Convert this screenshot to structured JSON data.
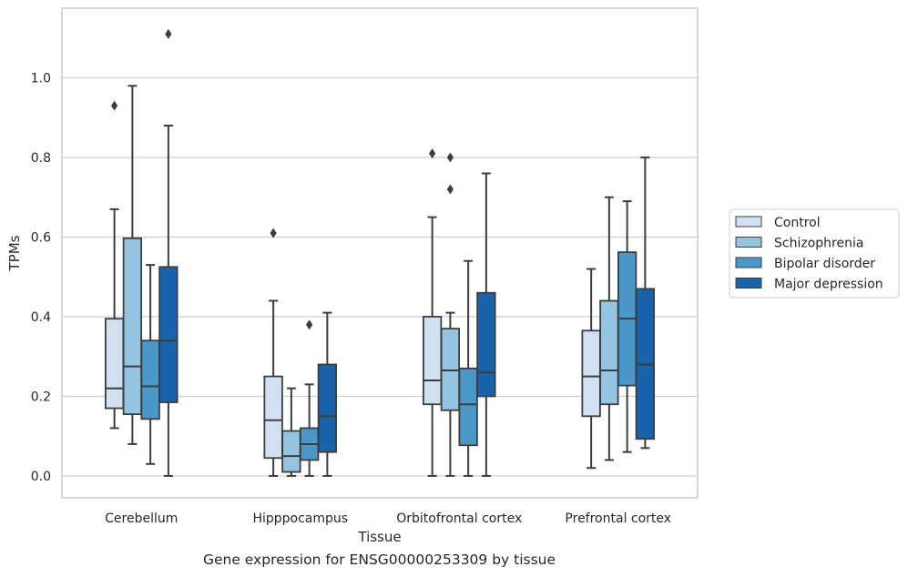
{
  "caption": "Gene expression for ENSG00000253309 by tissue",
  "chart_data": {
    "type": "box",
    "xlabel": "Tissue",
    "ylabel": "TPMs",
    "ylim": [
      -0.055,
      1.175
    ],
    "yticks": [
      0.0,
      0.2,
      0.4,
      0.6,
      0.8,
      1.0
    ],
    "ytick_labels": [
      "0.0",
      "0.2",
      "0.4",
      "0.6",
      "0.8",
      "1.0"
    ],
    "grid": "horizontal",
    "legend_position": "right",
    "categories": [
      "Cerebellum",
      "Hipppocampus",
      "Orbitofrontal cortex",
      "Prefrontal cortex"
    ],
    "series": [
      {
        "name": "Control",
        "color": "#d0e1f2",
        "boxes": [
          {
            "whislo": 0.12,
            "q1": 0.17,
            "med": 0.22,
            "q3": 0.395,
            "whishi": 0.67,
            "fliers": [
              0.93
            ]
          },
          {
            "whislo": 0.0,
            "q1": 0.045,
            "med": 0.14,
            "q3": 0.25,
            "whishi": 0.44,
            "fliers": [
              0.61
            ]
          },
          {
            "whislo": 0.0,
            "q1": 0.18,
            "med": 0.24,
            "q3": 0.4,
            "whishi": 0.65,
            "fliers": [
              0.81
            ]
          },
          {
            "whislo": 0.02,
            "q1": 0.15,
            "med": 0.25,
            "q3": 0.365,
            "whishi": 0.52,
            "fliers": []
          }
        ]
      },
      {
        "name": "Schizophrenia",
        "color": "#94c4df",
        "boxes": [
          {
            "whislo": 0.08,
            "q1": 0.155,
            "med": 0.275,
            "q3": 0.597,
            "whishi": 0.98,
            "fliers": []
          },
          {
            "whislo": 0.0,
            "q1": 0.01,
            "med": 0.05,
            "q3": 0.113,
            "whishi": 0.22,
            "fliers": []
          },
          {
            "whislo": 0.0,
            "q1": 0.165,
            "med": 0.265,
            "q3": 0.37,
            "whishi": 0.41,
            "fliers": [
              0.72,
              0.8
            ]
          },
          {
            "whislo": 0.04,
            "q1": 0.18,
            "med": 0.265,
            "q3": 0.44,
            "whishi": 0.7,
            "fliers": []
          }
        ]
      },
      {
        "name": "Bipolar disorder",
        "color": "#4a98c9",
        "boxes": [
          {
            "whislo": 0.03,
            "q1": 0.143,
            "med": 0.225,
            "q3": 0.34,
            "whishi": 0.53,
            "fliers": []
          },
          {
            "whislo": 0.0,
            "q1": 0.04,
            "med": 0.08,
            "q3": 0.12,
            "whishi": 0.23,
            "fliers": [
              0.38
            ]
          },
          {
            "whislo": 0.0,
            "q1": 0.077,
            "med": 0.18,
            "q3": 0.27,
            "whishi": 0.54,
            "fliers": []
          },
          {
            "whislo": 0.06,
            "q1": 0.227,
            "med": 0.395,
            "q3": 0.562,
            "whishi": 0.69,
            "fliers": []
          }
        ]
      },
      {
        "name": "Major depression",
        "color": "#1764ab",
        "boxes": [
          {
            "whislo": 0.0,
            "q1": 0.185,
            "med": 0.34,
            "q3": 0.525,
            "whishi": 0.88,
            "fliers": [
              1.11
            ]
          },
          {
            "whislo": 0.0,
            "q1": 0.06,
            "med": 0.15,
            "q3": 0.28,
            "whishi": 0.41,
            "fliers": []
          },
          {
            "whislo": 0.0,
            "q1": 0.2,
            "med": 0.26,
            "q3": 0.46,
            "whishi": 0.76,
            "fliers": []
          },
          {
            "whislo": 0.07,
            "q1": 0.093,
            "med": 0.28,
            "q3": 0.47,
            "whishi": 0.8,
            "fliers": []
          }
        ]
      }
    ]
  }
}
